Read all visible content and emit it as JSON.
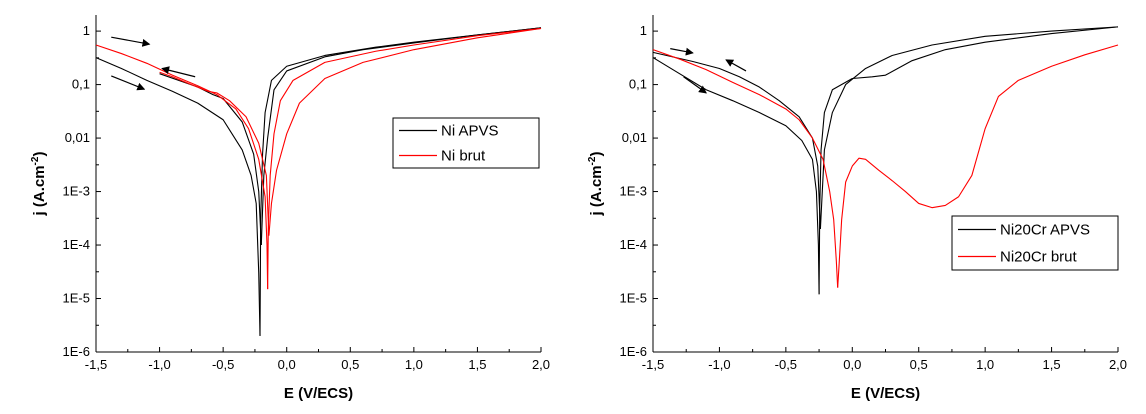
{
  "chart_data": [
    {
      "type": "line",
      "xlabel": "E (V/ECS)",
      "ylabel_main": "j (A.cm",
      "ylabel_sup": "-2",
      "ylabel_end": ")",
      "xlim": [
        -1.5,
        2.0
      ],
      "ylim": [
        1e-06,
        2
      ],
      "yscale": "log",
      "x_ticks": [
        "-1,5",
        "-1,0",
        "-0,5",
        "0,0",
        "0,5",
        "1,0",
        "1,5",
        "2,0"
      ],
      "x_tick_values": [
        -1.5,
        -1.0,
        -0.5,
        0.0,
        0.5,
        1.0,
        1.5,
        2.0
      ],
      "y_ticks": [
        "1E-6",
        "1E-5",
        "1E-4",
        "1E-3",
        "0,01",
        "0,1",
        "1"
      ],
      "y_tick_values": [
        1e-06,
        1e-05,
        0.0001,
        0.001,
        0.01,
        0.1,
        1
      ],
      "legend_position": "right",
      "series": [
        {
          "name": "Ni APVS",
          "color": "#000000",
          "segments": [
            [
              [
                -1.5,
                0.32
              ],
              [
                -1.3,
                0.2
              ],
              [
                -1.1,
                0.12
              ],
              [
                -0.9,
                0.075
              ],
              [
                -0.7,
                0.045
              ],
              [
                -0.5,
                0.022
              ],
              [
                -0.35,
                0.006
              ],
              [
                -0.28,
                0.002
              ],
              [
                -0.24,
                0.0006
              ],
              [
                -0.22,
                3e-05
              ],
              [
                -0.21,
                2e-06
              ]
            ],
            [
              [
                -0.21,
                2e-06
              ],
              [
                -0.205,
                0.0003
              ],
              [
                -0.19,
                0.005
              ],
              [
                -0.17,
                0.03
              ],
              [
                -0.12,
                0.12
              ],
              [
                0.0,
                0.22
              ],
              [
                0.3,
                0.35
              ],
              [
                0.7,
                0.5
              ],
              [
                1.0,
                0.62
              ],
              [
                1.5,
                0.85
              ],
              [
                2.0,
                1.15
              ]
            ],
            [
              [
                2.0,
                1.15
              ],
              [
                1.5,
                0.85
              ],
              [
                1.0,
                0.6
              ],
              [
                0.6,
                0.45
              ],
              [
                0.3,
                0.33
              ],
              [
                0.0,
                0.18
              ],
              [
                -0.1,
                0.08
              ],
              [
                -0.15,
                0.01
              ],
              [
                -0.18,
                0.002
              ],
              [
                -0.2,
                0.0001
              ]
            ],
            [
              [
                -0.2,
                0.0001
              ],
              [
                -0.22,
                0.001
              ],
              [
                -0.26,
                0.005
              ],
              [
                -0.35,
                0.02
              ],
              [
                -0.5,
                0.055
              ],
              [
                -0.58,
                0.065
              ],
              [
                -0.7,
                0.09
              ],
              [
                -0.85,
                0.12
              ],
              [
                -1.0,
                0.16
              ]
            ]
          ]
        },
        {
          "name": "Ni brut",
          "color": "#ff0000",
          "segments": [
            [
              [
                -1.5,
                0.55
              ],
              [
                -1.3,
                0.38
              ],
              [
                -1.1,
                0.25
              ],
              [
                -0.9,
                0.15
              ],
              [
                -0.7,
                0.095
              ],
              [
                -0.55,
                0.065
              ],
              [
                -0.4,
                0.035
              ],
              [
                -0.3,
                0.015
              ],
              [
                -0.22,
                0.004
              ],
              [
                -0.17,
                0.0008
              ],
              [
                -0.155,
                0.0001
              ],
              [
                -0.15,
                1.5e-05
              ]
            ],
            [
              [
                -0.15,
                1.5e-05
              ],
              [
                -0.145,
                0.0002
              ],
              [
                -0.13,
                0.002
              ],
              [
                -0.1,
                0.012
              ],
              [
                -0.05,
                0.05
              ],
              [
                0.05,
                0.12
              ],
              [
                0.3,
                0.26
              ],
              [
                0.7,
                0.42
              ],
              [
                1.0,
                0.55
              ],
              [
                1.5,
                0.82
              ],
              [
                2.0,
                1.12
              ]
            ],
            [
              [
                2.0,
                1.12
              ],
              [
                1.5,
                0.75
              ],
              [
                1.0,
                0.45
              ],
              [
                0.6,
                0.26
              ],
              [
                0.3,
                0.13
              ],
              [
                0.1,
                0.045
              ],
              [
                0.0,
                0.012
              ],
              [
                -0.08,
                0.0025
              ],
              [
                -0.12,
                0.0006
              ],
              [
                -0.14,
                0.00015
              ]
            ],
            [
              [
                -0.14,
                0.00015
              ],
              [
                -0.16,
                0.002
              ],
              [
                -0.22,
                0.008
              ],
              [
                -0.32,
                0.025
              ],
              [
                -0.45,
                0.05
              ],
              [
                -0.55,
                0.07
              ],
              [
                -0.62,
                0.075
              ],
              [
                -0.75,
                0.1
              ],
              [
                -0.9,
                0.14
              ],
              [
                -1.0,
                0.17
              ]
            ]
          ]
        }
      ],
      "arrows": [
        {
          "from": [
            -1.38,
            0.77
          ],
          "to": [
            -1.08,
            0.57
          ]
        },
        {
          "from": [
            -1.38,
            0.145
          ],
          "to": [
            -1.12,
            0.082
          ]
        },
        {
          "from": [
            -0.72,
            0.14
          ],
          "to": [
            -0.98,
            0.2
          ]
        }
      ]
    },
    {
      "type": "line",
      "xlabel": "E (V/ECS)",
      "ylabel_main": "j (A.cm",
      "ylabel_sup": "-2",
      "ylabel_end": ")",
      "xlim": [
        -1.5,
        2.0
      ],
      "ylim": [
        1e-06,
        2
      ],
      "yscale": "log",
      "x_ticks": [
        "-1,5",
        "-1,0",
        "-0,5",
        "0,0",
        "0,5",
        "1,0",
        "1,5",
        "2,0"
      ],
      "x_tick_values": [
        -1.5,
        -1.0,
        -0.5,
        0.0,
        0.5,
        1.0,
        1.5,
        2.0
      ],
      "y_ticks": [
        "1E-6",
        "1E-5",
        "1E-4",
        "1E-3",
        "0,01",
        "0,1",
        "1"
      ],
      "y_tick_values": [
        1e-06,
        1e-05,
        0.0001,
        0.001,
        0.01,
        0.1,
        1
      ],
      "legend_position": "lower-right",
      "series": [
        {
          "name": "Ni20Cr APVS",
          "color": "#000000",
          "segments": [
            [
              [
                -1.5,
                0.32
              ],
              [
                -1.3,
                0.16
              ],
              [
                -1.1,
                0.08
              ],
              [
                -0.9,
                0.05
              ],
              [
                -0.7,
                0.03
              ],
              [
                -0.5,
                0.017
              ],
              [
                -0.38,
                0.009
              ],
              [
                -0.3,
                0.004
              ],
              [
                -0.27,
                0.001
              ],
              [
                -0.255,
                0.0001
              ],
              [
                -0.25,
                1.2e-05
              ]
            ],
            [
              [
                -0.25,
                1.2e-05
              ],
              [
                -0.245,
                0.0005
              ],
              [
                -0.235,
                0.006
              ],
              [
                -0.21,
                0.03
              ],
              [
                -0.15,
                0.08
              ],
              [
                0.0,
                0.13
              ],
              [
                0.15,
                0.14
              ],
              [
                0.25,
                0.15
              ],
              [
                0.45,
                0.28
              ],
              [
                0.7,
                0.45
              ],
              [
                1.0,
                0.62
              ],
              [
                1.5,
                0.9
              ],
              [
                2.0,
                1.2
              ]
            ],
            [
              [
                2.0,
                1.2
              ],
              [
                1.5,
                1.0
              ],
              [
                1.0,
                0.8
              ],
              [
                0.6,
                0.55
              ],
              [
                0.3,
                0.35
              ],
              [
                0.1,
                0.2
              ],
              [
                -0.05,
                0.1
              ],
              [
                -0.15,
                0.03
              ],
              [
                -0.21,
                0.006
              ],
              [
                -0.24,
                0.0002
              ]
            ],
            [
              [
                -0.24,
                0.0002
              ],
              [
                -0.26,
                0.003
              ],
              [
                -0.3,
                0.01
              ],
              [
                -0.4,
                0.025
              ],
              [
                -0.55,
                0.05
              ],
              [
                -0.7,
                0.09
              ],
              [
                -0.85,
                0.14
              ],
              [
                -1.0,
                0.2
              ],
              [
                -1.2,
                0.27
              ],
              [
                -1.5,
                0.4
              ]
            ]
          ]
        },
        {
          "name": "Ni20Cr brut",
          "color": "#ff0000",
          "segments": [
            [
              [
                -1.5,
                0.45
              ],
              [
                -1.3,
                0.3
              ],
              [
                -1.1,
                0.19
              ],
              [
                -0.9,
                0.11
              ],
              [
                -0.7,
                0.065
              ],
              [
                -0.5,
                0.035
              ],
              [
                -0.4,
                0.022
              ],
              [
                -0.3,
                0.01
              ],
              [
                -0.22,
                0.004
              ],
              [
                -0.17,
                0.001
              ],
              [
                -0.14,
                0.0003
              ],
              [
                -0.12,
                5e-05
              ],
              [
                -0.11,
                1.6e-05
              ]
            ],
            [
              [
                -0.11,
                1.6e-05
              ],
              [
                -0.1,
                4e-05
              ],
              [
                -0.08,
                0.0003
              ],
              [
                -0.05,
                0.0015
              ],
              [
                0.0,
                0.003
              ],
              [
                0.05,
                0.0042
              ],
              [
                0.1,
                0.004
              ],
              [
                0.2,
                0.0025
              ],
              [
                0.3,
                0.0016
              ],
              [
                0.4,
                0.001
              ],
              [
                0.5,
                0.0006
              ],
              [
                0.6,
                0.0005
              ],
              [
                0.7,
                0.00055
              ],
              [
                0.8,
                0.0008
              ],
              [
                0.9,
                0.002
              ],
              [
                1.0,
                0.015
              ],
              [
                1.1,
                0.06
              ],
              [
                1.25,
                0.12
              ],
              [
                1.5,
                0.22
              ],
              [
                1.75,
                0.36
              ],
              [
                2.0,
                0.55
              ]
            ]
          ]
        }
      ],
      "arrows": [
        {
          "from": [
            -1.37,
            0.47
          ],
          "to": [
            -1.2,
            0.39
          ]
        },
        {
          "from": [
            -1.27,
            0.14
          ],
          "to": [
            -1.1,
            0.07
          ]
        },
        {
          "from": [
            -0.8,
            0.18
          ],
          "to": [
            -0.95,
            0.29
          ]
        }
      ]
    }
  ]
}
